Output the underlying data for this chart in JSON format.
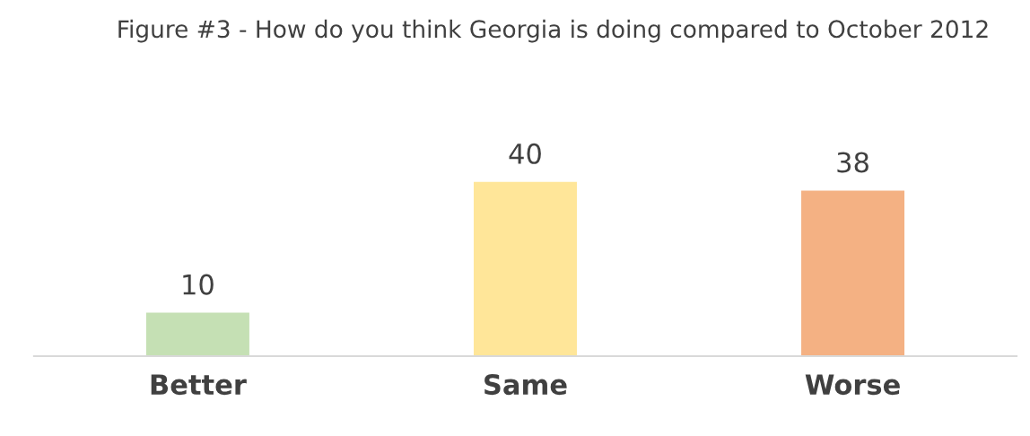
{
  "chart_data": {
    "type": "bar",
    "title": "Figure #3 - How do you think Georgia is doing compared to October 2012",
    "categories": [
      "Better",
      "Same",
      "Worse"
    ],
    "values": [
      10,
      40,
      38
    ],
    "colors": [
      "#c5e0b4",
      "#ffe699",
      "#f4b183"
    ],
    "data_labels": true,
    "grid": false,
    "legend": false
  }
}
